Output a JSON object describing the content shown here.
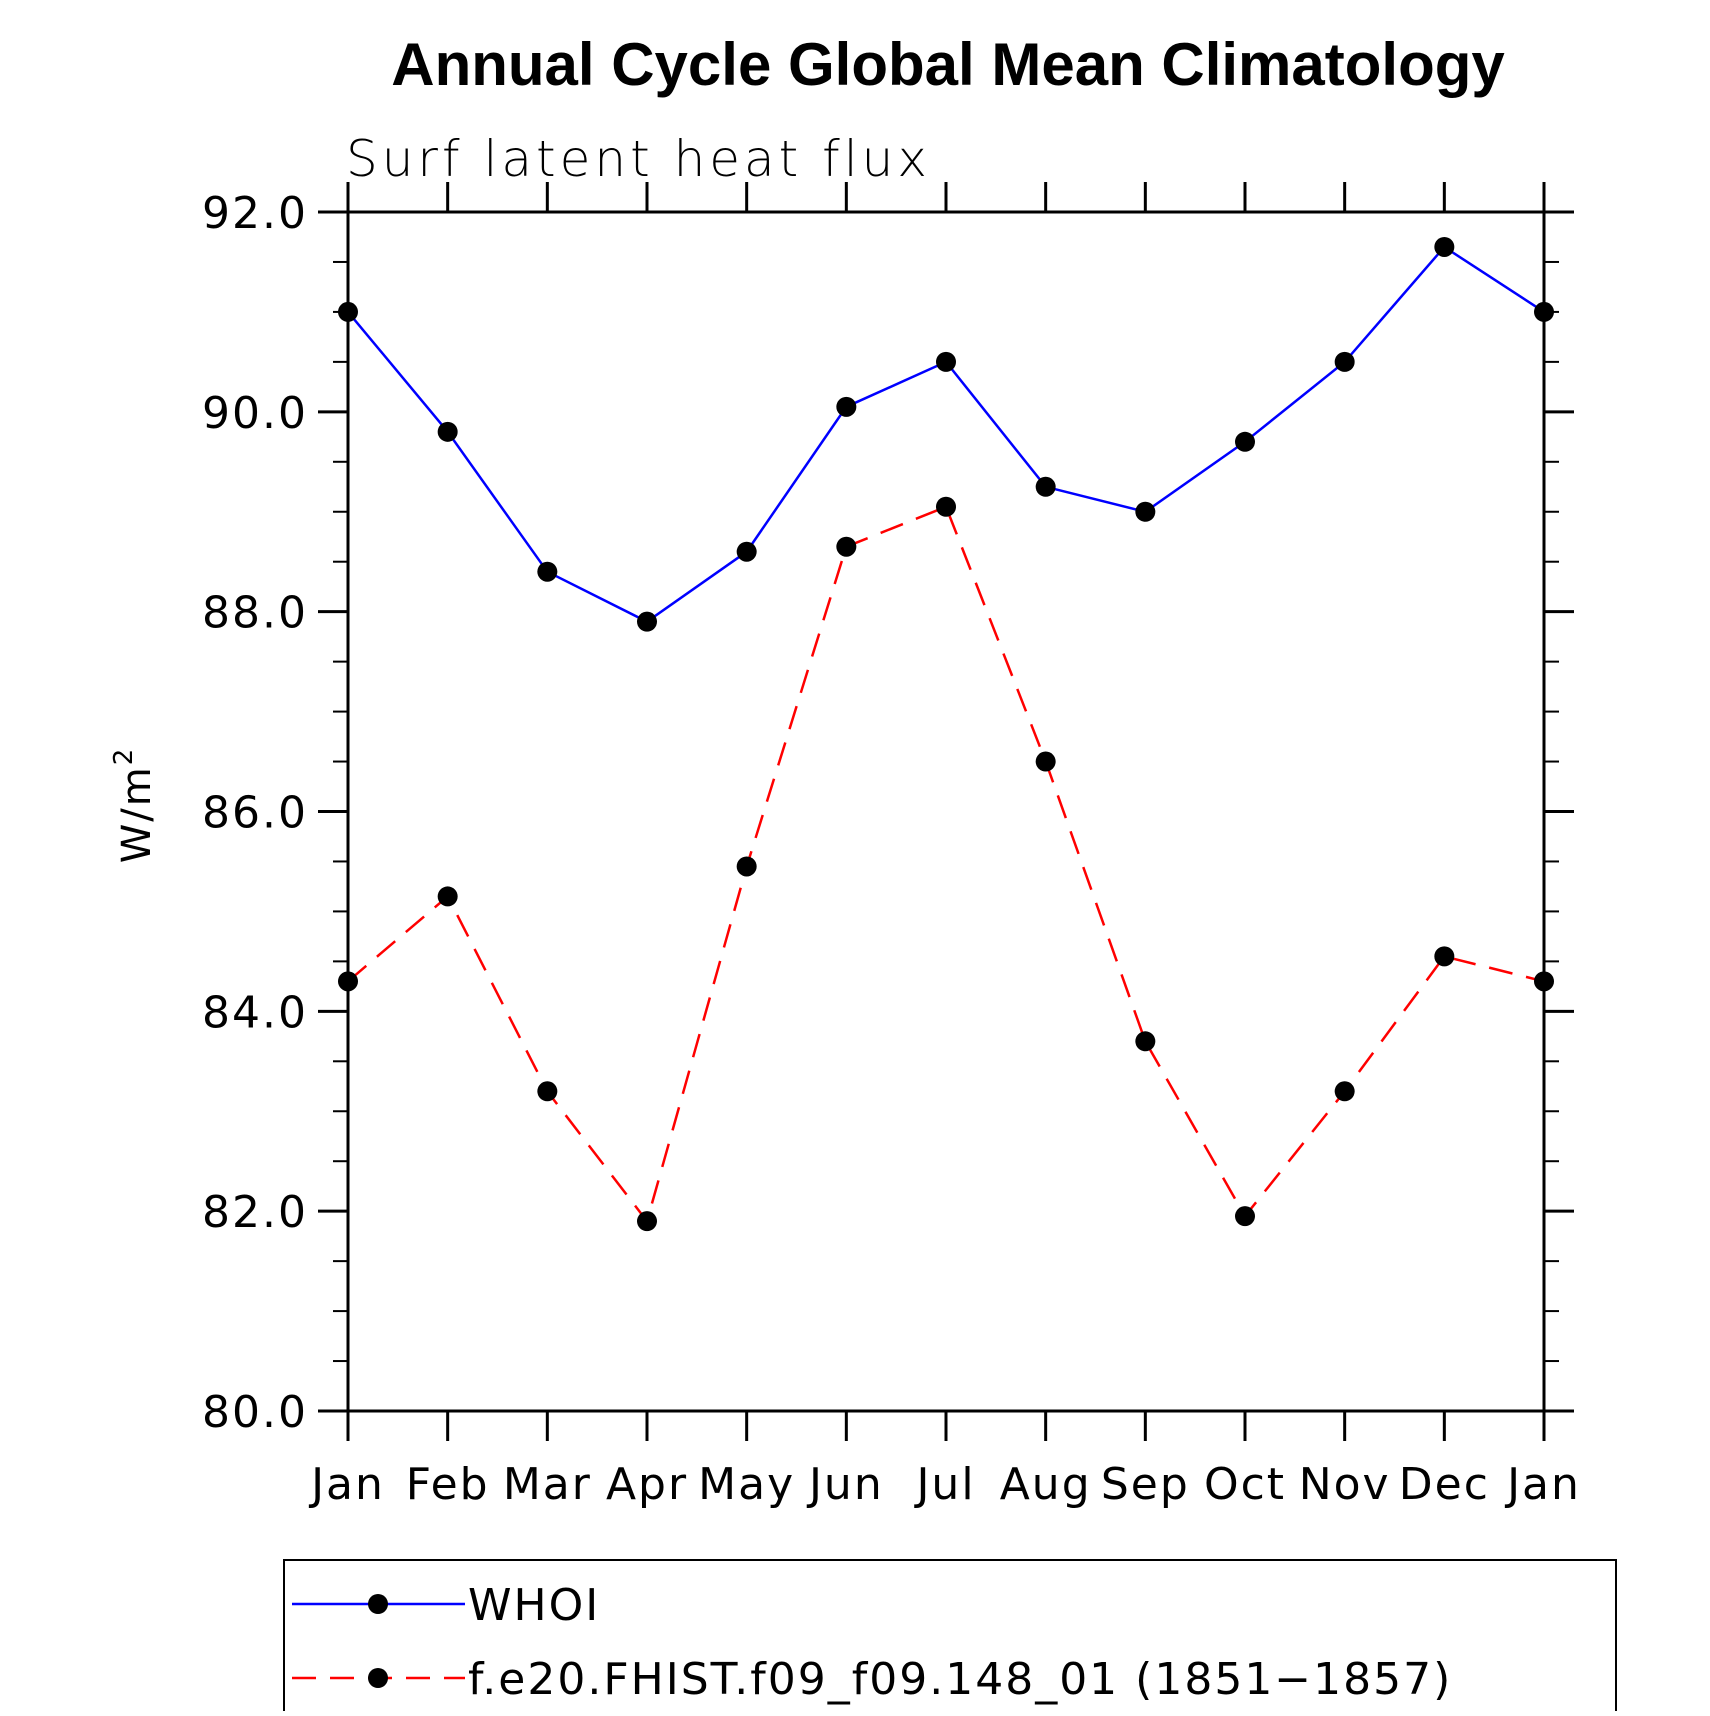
{
  "chart_data": {
    "type": "line",
    "title": "Annual Cycle Global Mean Climatology",
    "subtitle": "Surf latent heat flux",
    "ylabel": "W/m",
    "ylabel_superscript": "2",
    "xlabel": "",
    "categories": [
      "Jan",
      "Feb",
      "Mar",
      "Apr",
      "May",
      "Jun",
      "Jul",
      "Aug",
      "Sep",
      "Oct",
      "Nov",
      "Dec",
      "Jan"
    ],
    "ylim": [
      80.0,
      92.0
    ],
    "yticks": [
      "80.0",
      "82.0",
      "84.0",
      "86.0",
      "88.0",
      "90.0",
      "92.0"
    ],
    "grid": false,
    "legend_position": "bottom",
    "series": [
      {
        "name": "WHOI",
        "color": "#0000ff",
        "line_style": "solid",
        "marker": "filled-circle",
        "values": [
          91.0,
          89.8,
          88.4,
          87.9,
          88.6,
          90.05,
          90.5,
          89.25,
          89.0,
          89.7,
          90.5,
          91.65,
          91.0
        ]
      },
      {
        "name": "f.e20.FHIST.f09_f09.148_01 (1851−1857)",
        "color": "#ff0000",
        "line_style": "dashed",
        "marker": "filled-circle",
        "values": [
          84.3,
          85.15,
          83.2,
          81.9,
          85.45,
          88.65,
          89.05,
          86.5,
          83.7,
          81.95,
          83.2,
          84.55,
          84.3
        ]
      }
    ]
  }
}
